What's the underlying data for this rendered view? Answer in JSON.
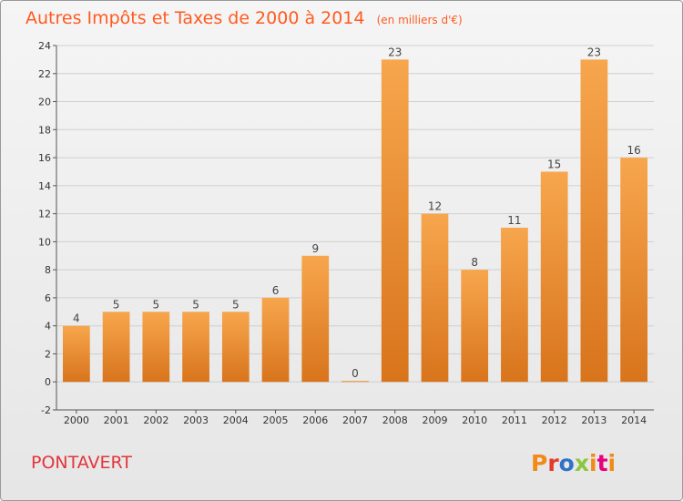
{
  "header": {
    "title": "Autres Impôts et Taxes de 2000 à 2014",
    "unit": "(en milliers d'€)"
  },
  "footer": {
    "place": "PONTAVERT",
    "brand": "Proxiti",
    "brand_colors": [
      "#f28a17",
      "#e63b2a",
      "#2f73c7",
      "#8cc63f",
      "#f28a17",
      "#e6007e",
      "#f28a17"
    ]
  },
  "colors": {
    "bar_light": "#f7a64d",
    "bar_dark": "#d8741c",
    "title": "#ff5a1f",
    "place": "#e3353b",
    "grid": "#d0d0d0"
  },
  "chart_data": {
    "type": "bar",
    "title": "Autres Impôts et Taxes de 2000 à 2014",
    "subtitle": "(en milliers d'€)",
    "categories": [
      "2000",
      "2001",
      "2002",
      "2003",
      "2004",
      "2005",
      "2006",
      "2007",
      "2008",
      "2009",
      "2010",
      "2011",
      "2012",
      "2013",
      "2014"
    ],
    "values": [
      4,
      5,
      5,
      5,
      5,
      6,
      9,
      0,
      23,
      12,
      8,
      11,
      15,
      23,
      16
    ],
    "ylim": [
      -2,
      24
    ],
    "yticks": [
      -2,
      0,
      2,
      4,
      6,
      8,
      10,
      12,
      14,
      16,
      18,
      20,
      22,
      24
    ],
    "grid": true,
    "legend": "none"
  }
}
